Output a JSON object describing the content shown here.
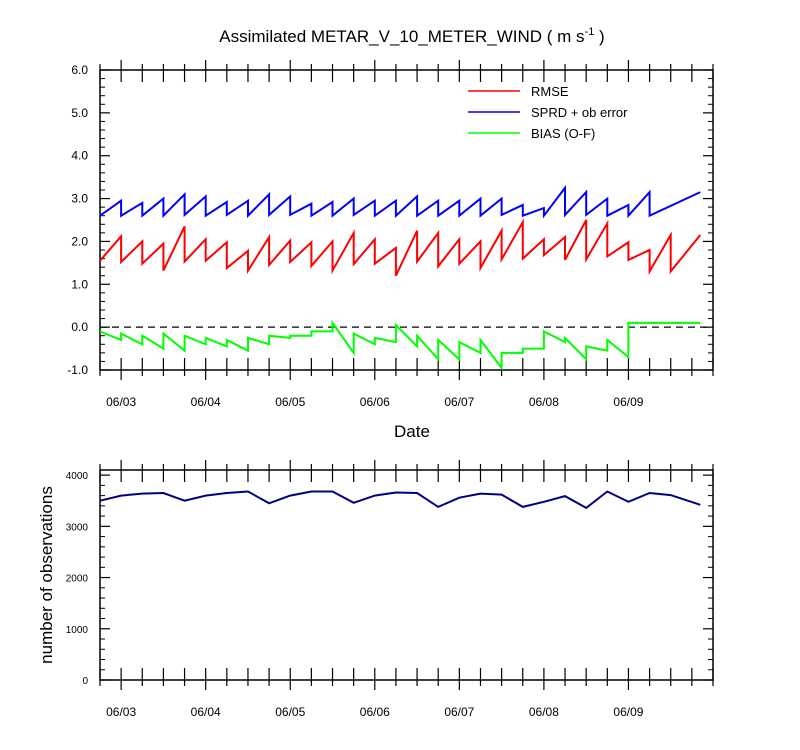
{
  "chart_data": [
    {
      "type": "line",
      "title": "Assimilated METAR_V_10_METER_WIND ( m s",
      "title_superscript": "-1",
      "title_suffix": " )",
      "xlabel": "Date",
      "ylabel": "",
      "ylim": [
        -1.0,
        6.0
      ],
      "y_ticks": [
        -1.0,
        0.0,
        1.0,
        2.0,
        3.0,
        4.0,
        5.0,
        6.0
      ],
      "y_tick_labels": [
        "-1.0",
        "0.0",
        "1.0",
        "2.0",
        "3.0",
        "4.0",
        "5.0",
        "6.0"
      ],
      "xlim": [
        0,
        14.5
      ],
      "x_tick_positions": [
        0.5,
        2.5,
        4.5,
        6.5,
        8.5,
        10.5,
        12.5
      ],
      "x_tick_labels": [
        "06/03",
        "06/04",
        "06/05",
        "06/06",
        "06/07",
        "06/08",
        "06/09"
      ],
      "zero_line": true,
      "legend_position": "top-right",
      "series": [
        {
          "name": "RMSE",
          "color": "#ff0000",
          "start_value": 1.55,
          "segments": [
            [
              0.5,
              2.12,
              1.52
            ],
            [
              1.0,
              2.0,
              1.48
            ],
            [
              1.5,
              1.95,
              1.32
            ],
            [
              2.0,
              2.35,
              1.53
            ],
            [
              2.5,
              2.05,
              1.55
            ],
            [
              3.0,
              1.98,
              1.38
            ],
            [
              3.5,
              1.78,
              1.32
            ],
            [
              4.0,
              2.1,
              1.45
            ],
            [
              4.5,
              2.02,
              1.52
            ],
            [
              5.0,
              1.98,
              1.43
            ],
            [
              5.5,
              2.0,
              1.32
            ],
            [
              6.0,
              2.2,
              1.47
            ],
            [
              6.5,
              2.05,
              1.48
            ],
            [
              7.0,
              1.85,
              1.2
            ],
            [
              7.5,
              2.25,
              1.53
            ],
            [
              8.0,
              2.2,
              1.42
            ],
            [
              8.5,
              2.05,
              1.48
            ],
            [
              9.0,
              2.0,
              1.38
            ],
            [
              9.5,
              2.25,
              1.58
            ],
            [
              10.0,
              2.45,
              1.6
            ],
            [
              10.5,
              2.05,
              1.68
            ],
            [
              11.0,
              2.1,
              1.57
            ],
            [
              11.5,
              2.5,
              1.58
            ],
            [
              12.0,
              2.42,
              1.65
            ],
            [
              12.5,
              1.98,
              1.57
            ],
            [
              13.0,
              1.8,
              1.3
            ],
            [
              13.5,
              2.15,
              1.3
            ]
          ],
          "end_x": 14.2
        },
        {
          "name": "SPRD + ob error",
          "color": "#0000ff",
          "start_value": 2.6,
          "segments": [
            [
              0.5,
              2.95,
              2.6
            ],
            [
              1.0,
              2.9,
              2.6
            ],
            [
              1.5,
              3.0,
              2.6
            ],
            [
              2.0,
              3.1,
              2.62
            ],
            [
              2.5,
              3.05,
              2.6
            ],
            [
              3.0,
              2.92,
              2.62
            ],
            [
              3.5,
              2.95,
              2.6
            ],
            [
              4.0,
              3.1,
              2.62
            ],
            [
              4.5,
              3.05,
              2.62
            ],
            [
              5.0,
              2.88,
              2.6
            ],
            [
              5.5,
              2.92,
              2.6
            ],
            [
              6.0,
              3.0,
              2.62
            ],
            [
              6.5,
              2.95,
              2.6
            ],
            [
              7.0,
              2.95,
              2.6
            ],
            [
              7.5,
              3.05,
              2.6
            ],
            [
              8.0,
              2.95,
              2.6
            ],
            [
              8.5,
              2.95,
              2.6
            ],
            [
              9.0,
              3.0,
              2.6
            ],
            [
              9.5,
              3.0,
              2.62
            ],
            [
              10.0,
              2.85,
              2.6
            ],
            [
              10.5,
              2.78,
              2.6
            ],
            [
              11.0,
              3.25,
              2.62
            ],
            [
              11.5,
              3.15,
              2.62
            ],
            [
              12.0,
              3.0,
              2.6
            ],
            [
              12.5,
              2.85,
              2.6
            ],
            [
              13.0,
              3.15,
              2.6
            ]
          ],
          "end_x": 14.2
        },
        {
          "name": "BIAS (O-F)",
          "color": "#00ff00",
          "start_value": -0.1,
          "segments": [
            [
              0.5,
              -0.3,
              -0.15
            ],
            [
              1.0,
              -0.4,
              -0.2
            ],
            [
              1.5,
              -0.5,
              -0.15
            ],
            [
              2.0,
              -0.55,
              -0.2
            ],
            [
              2.5,
              -0.4,
              -0.25
            ],
            [
              3.0,
              -0.45,
              -0.3
            ],
            [
              3.5,
              -0.55,
              -0.25
            ],
            [
              4.0,
              -0.4,
              -0.2
            ],
            [
              4.5,
              -0.25,
              -0.2
            ],
            [
              5.0,
              -0.2,
              -0.1
            ],
            [
              5.5,
              -0.1,
              0.1
            ],
            [
              6.0,
              -0.6,
              -0.15
            ],
            [
              6.5,
              -0.4,
              -0.25
            ],
            [
              7.0,
              -0.35,
              0.05
            ],
            [
              7.5,
              -0.45,
              -0.2
            ],
            [
              8.0,
              -0.75,
              -0.3
            ],
            [
              8.5,
              -0.75,
              -0.35
            ],
            [
              9.0,
              -0.6,
              -0.3
            ],
            [
              9.5,
              -0.95,
              -0.6
            ],
            [
              10.0,
              -0.6,
              -0.5
            ],
            [
              10.5,
              -0.5,
              -0.1
            ],
            [
              11.0,
              -0.35,
              -0.25
            ],
            [
              11.5,
              -0.75,
              -0.45
            ],
            [
              12.0,
              -0.55,
              -0.3
            ],
            [
              12.5,
              -0.7,
              0.1
            ]
          ],
          "end_x": 14.2
        }
      ]
    },
    {
      "type": "line",
      "title": "",
      "xlabel": "",
      "ylabel": "number of observations",
      "ylim": [
        0,
        4000
      ],
      "y_ticks": [
        0,
        1000,
        2000,
        3000,
        4000
      ],
      "y_tick_labels": [
        "0",
        "1000",
        "2000",
        "3000",
        "4000"
      ],
      "xlim": [
        0,
        14.5
      ],
      "x_tick_positions": [
        0.5,
        2.5,
        4.5,
        6.5,
        8.5,
        10.5,
        12.5
      ],
      "x_tick_labels": [
        "06/03",
        "06/04",
        "06/05",
        "06/06",
        "06/07",
        "06/08",
        "06/09"
      ],
      "series": [
        {
          "name": "number of observations",
          "color": "#000080",
          "x": [
            0,
            0.5,
            1.0,
            1.5,
            2.0,
            2.5,
            3.0,
            3.5,
            4.0,
            4.5,
            5.0,
            5.5,
            6.0,
            6.5,
            7.0,
            7.5,
            8.0,
            8.5,
            9.0,
            9.5,
            10.0,
            10.5,
            11.0,
            11.5,
            12.0,
            12.5,
            13.0,
            13.5,
            14.2
          ],
          "values": [
            3500,
            3600,
            3640,
            3650,
            3500,
            3600,
            3650,
            3680,
            3450,
            3600,
            3680,
            3680,
            3460,
            3600,
            3660,
            3650,
            3380,
            3560,
            3640,
            3620,
            3380,
            3480,
            3590,
            3360,
            3680,
            3480,
            3650,
            3610,
            3420
          ]
        }
      ]
    }
  ]
}
